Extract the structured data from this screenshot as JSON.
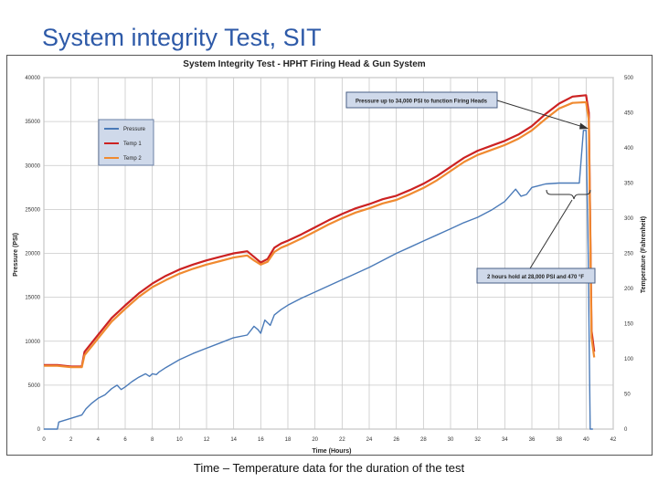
{
  "slide": {
    "title": "System integrity Test, SIT",
    "caption": "Time – Temperature data for the duration of the test"
  },
  "chart_data": {
    "type": "line",
    "title": "System Integrity Test - HPHT Firing Head & Gun System",
    "xlabel": "Time (Hours)",
    "ylabel": "Pressure (PSI)",
    "y2label": "Temperature (Fahrenheit)",
    "xlim": [
      0,
      42
    ],
    "ylim": [
      0,
      40000
    ],
    "y2lim": [
      0,
      500
    ],
    "xticks": [
      0,
      2,
      4,
      6,
      8,
      10,
      12,
      14,
      16,
      18,
      20,
      22,
      24,
      26,
      28,
      30,
      32,
      34,
      36,
      38,
      40,
      42
    ],
    "yticks": [
      0,
      5000,
      10000,
      15000,
      20000,
      25000,
      30000,
      35000,
      40000
    ],
    "y2ticks": [
      0,
      50,
      100,
      150,
      200,
      250,
      300,
      350,
      400,
      450,
      500
    ],
    "grid": true,
    "legend": "top-left",
    "series": [
      {
        "name": "Pressure",
        "axis": "left",
        "color": "#4a7ab8",
        "x": [
          0,
          1,
          1.1,
          2.8,
          3.1,
          3.5,
          4,
          4.5,
          5,
          5.4,
          5.7,
          6,
          6.5,
          7,
          7.5,
          7.8,
          8,
          8.3,
          8.5,
          9,
          10,
          11,
          12,
          13,
          14,
          15,
          15.5,
          15.8,
          16,
          16.3,
          16.7,
          17,
          17.5,
          18,
          19,
          20,
          21,
          22,
          23,
          24,
          25,
          26,
          27,
          28,
          29,
          30,
          31,
          32,
          33,
          34,
          34.8,
          35.2,
          35.6,
          36,
          36.5,
          37,
          38,
          39.5,
          39.8,
          40,
          40.15,
          40.3,
          40.5
        ],
        "y": [
          0,
          0,
          800,
          1600,
          2300,
          2900,
          3500,
          3900,
          4600,
          5000,
          4500,
          4800,
          5400,
          5900,
          6300,
          6000,
          6300,
          6200,
          6500,
          7000,
          7900,
          8600,
          9200,
          9800,
          10400,
          10700,
          11700,
          11300,
          10900,
          12400,
          11800,
          13000,
          13600,
          14100,
          14900,
          15600,
          16300,
          17000,
          17700,
          18400,
          19200,
          20000,
          20700,
          21400,
          22100,
          22800,
          23500,
          24100,
          24900,
          25900,
          27300,
          26500,
          26700,
          27500,
          27700,
          27900,
          28000,
          28000,
          34000,
          34000,
          20000,
          0,
          0
        ]
      },
      {
        "name": "Temp 1",
        "axis": "right",
        "color": "#cc2222",
        "x": [
          0,
          1,
          2,
          2.8,
          3,
          3.5,
          4,
          5,
          6,
          7,
          8,
          9,
          10,
          11,
          12,
          13,
          14,
          15,
          15.5,
          16,
          16.5,
          17,
          17.5,
          18,
          19,
          20,
          21,
          22,
          23,
          24,
          25,
          26,
          27,
          28,
          29,
          30,
          31,
          32,
          33,
          34,
          35,
          36,
          37,
          38,
          39,
          40,
          40.2,
          40.4,
          40.6
        ],
        "y": [
          91,
          91,
          89,
          89,
          110,
          122,
          134,
          158,
          176,
          193,
          207,
          218,
          227,
          234,
          240,
          245,
          250,
          253,
          245,
          237,
          242,
          258,
          264,
          268,
          277,
          287,
          297,
          306,
          314,
          320,
          327,
          332,
          340,
          349,
          360,
          373,
          386,
          396,
          403,
          410,
          419,
          431,
          448,
          463,
          473,
          475,
          450,
          140,
          110
        ]
      },
      {
        "name": "Temp 2",
        "axis": "right",
        "color": "#f08a30",
        "x": [
          0,
          1,
          2,
          2.8,
          3,
          3.5,
          4,
          5,
          6,
          7,
          8,
          9,
          10,
          11,
          12,
          13,
          14,
          15,
          15.5,
          16,
          16.5,
          17,
          17.5,
          18,
          19,
          20,
          21,
          22,
          23,
          24,
          25,
          26,
          27,
          28,
          29,
          30,
          31,
          32,
          33,
          34,
          35,
          36,
          37,
          38,
          39,
          40,
          40.2,
          40.4,
          40.6
        ],
        "y": [
          90,
          90,
          88,
          88,
          105,
          117,
          129,
          153,
          171,
          188,
          202,
          212,
          221,
          228,
          234,
          239,
          244,
          247,
          240,
          234,
          238,
          252,
          258,
          262,
          271,
          281,
          291,
          300,
          308,
          314,
          321,
          326,
          334,
          343,
          354,
          367,
          380,
          390,
          397,
          404,
          413,
          425,
          441,
          456,
          464,
          465,
          440,
          130,
          102
        ]
      }
    ],
    "annotations": [
      {
        "text": "Pressure up to 34,000  PSI to function Firing Heads",
        "x": 40,
        "y": 34000
      },
      {
        "text": "2 hours hold at 28,000 PSI and 470 °F",
        "x": 38,
        "y": 28000
      }
    ]
  }
}
